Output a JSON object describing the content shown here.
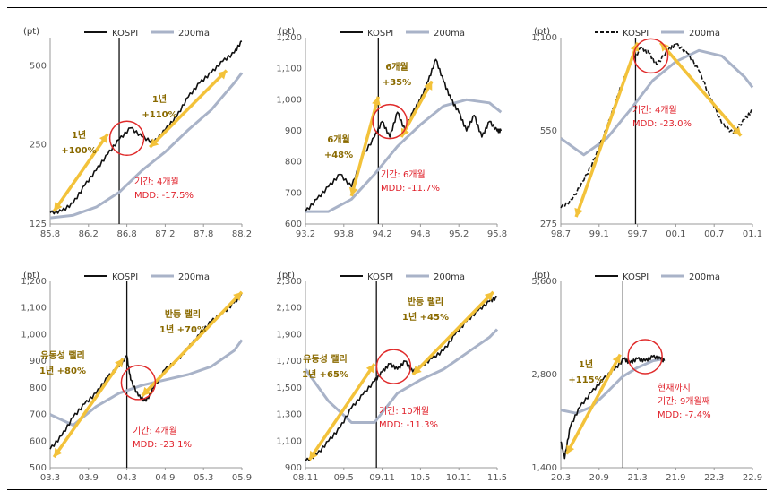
{
  "unit_label": "(pt)",
  "legend": {
    "series1": "KOSPI",
    "series2": "200ma"
  },
  "colors": {
    "index": "#111111",
    "ma": "#a9b3c8",
    "arrow": "#f3c23a",
    "circle": "#e02b2b",
    "gold_text": "#8a6a00",
    "red_text": "#e0202a"
  },
  "chart_data": [
    {
      "type": "line",
      "id": "p1",
      "x_ticks": [
        "85.8",
        "86.2",
        "86.8",
        "87.2",
        "87.8",
        "88.2"
      ],
      "y_ticks": [
        "125",
        "250",
        "500"
      ],
      "log_scale": true,
      "ylim": [
        125,
        640
      ],
      "dashed_index": false,
      "series": [
        {
          "values": [
            [
              0,
              138
            ],
            [
              0.3,
              140
            ],
            [
              0.6,
              150
            ],
            [
              0.9,
              175
            ],
            [
              1.2,
              200
            ],
            [
              1.5,
              230
            ],
            [
              1.8,
              262
            ],
            [
              2.1,
              290
            ],
            [
              2.4,
              268
            ],
            [
              2.7,
              255
            ],
            [
              3.0,
              285
            ],
            [
              3.3,
              320
            ],
            [
              3.6,
              380
            ],
            [
              3.9,
              430
            ],
            [
              4.2,
              470
            ],
            [
              4.5,
              520
            ],
            [
              4.8,
              560
            ],
            [
              5.0,
              620
            ]
          ]
        },
        {
          "values": [
            [
              0,
              132
            ],
            [
              0.6,
              135
            ],
            [
              1.2,
              145
            ],
            [
              1.8,
              165
            ],
            [
              2.4,
              200
            ],
            [
              3.0,
              235
            ],
            [
              3.6,
              285
            ],
            [
              4.2,
              340
            ],
            [
              4.8,
              430
            ],
            [
              5.0,
              470
            ]
          ]
        }
      ],
      "vline_x": 1.8,
      "arrows": [
        [
          [
            0.1,
            140
          ],
          [
            1.5,
            275
          ]
        ],
        [
          [
            2.6,
            245
          ],
          [
            4.6,
            480
          ]
        ]
      ],
      "circle": {
        "x": 2.0,
        "y": 265
      },
      "gold_labels": [
        [
          "1년",
          "+100%"
        ],
        [
          "1년",
          "+110%"
        ]
      ],
      "red_labels": [
        "기간: 4개월",
        "MDD: -17.5%"
      ]
    },
    {
      "type": "line",
      "id": "p2",
      "x_ticks": [
        "93.2",
        "93.8",
        "94.2",
        "94.8",
        "95.2",
        "95.8"
      ],
      "y_ticks": [
        "600",
        "700",
        "800",
        "900",
        "1,000",
        "1,100",
        "1,200"
      ],
      "log_scale": false,
      "ylim": [
        600,
        1200
      ],
      "dashed_index": false,
      "series": [
        {
          "values": [
            [
              0,
              640
            ],
            [
              0.3,
              680
            ],
            [
              0.6,
              720
            ],
            [
              0.9,
              760
            ],
            [
              1.2,
              720
            ],
            [
              1.5,
              820
            ],
            [
              1.8,
              880
            ],
            [
              2.0,
              930
            ],
            [
              2.2,
              880
            ],
            [
              2.4,
              960
            ],
            [
              2.6,
              900
            ],
            [
              2.8,
              960
            ],
            [
              3.0,
              1000
            ],
            [
              3.2,
              1060
            ],
            [
              3.4,
              1130
            ],
            [
              3.6,
              1060
            ],
            [
              3.8,
              1000
            ],
            [
              4.0,
              960
            ],
            [
              4.2,
              900
            ],
            [
              4.4,
              950
            ],
            [
              4.6,
              880
            ],
            [
              4.8,
              930
            ],
            [
              5.0,
              900
            ],
            [
              5.1,
              900
            ]
          ]
        },
        {
          "values": [
            [
              0,
              640
            ],
            [
              0.6,
              640
            ],
            [
              1.2,
              680
            ],
            [
              1.8,
              760
            ],
            [
              2.4,
              850
            ],
            [
              3.0,
              920
            ],
            [
              3.6,
              980
            ],
            [
              4.2,
              1000
            ],
            [
              4.8,
              990
            ],
            [
              5.1,
              960
            ]
          ]
        }
      ],
      "vline_x": 1.9,
      "arrows": [
        [
          [
            1.2,
            690
          ],
          [
            1.9,
            1010
          ]
        ],
        [
          [
            2.5,
            880
          ],
          [
            3.3,
            1060
          ]
        ]
      ],
      "circle": {
        "x": 2.2,
        "y": 930
      },
      "gold_labels": [
        [
          "6개월",
          "+48%"
        ],
        [
          "6개월",
          "+35%"
        ]
      ],
      "red_labels": [
        "기간: 6개월",
        "MDD: -11.7%"
      ]
    },
    {
      "type": "line",
      "id": "p3",
      "x_ticks": [
        "98.7",
        "99.1",
        "99.7",
        "00.1",
        "00.7",
        "01.1"
      ],
      "y_ticks": [
        "275",
        "550",
        "1,100"
      ],
      "log_scale": true,
      "ylim": [
        275,
        1100
      ],
      "dashed_index": true,
      "series": [
        {
          "values": [
            [
              0,
              310
            ],
            [
              0.3,
              330
            ],
            [
              0.6,
              380
            ],
            [
              0.9,
              450
            ],
            [
              1.2,
              560
            ],
            [
              1.5,
              720
            ],
            [
              1.8,
              900
            ],
            [
              2.1,
              1020
            ],
            [
              2.3,
              980
            ],
            [
              2.5,
              900
            ],
            [
              2.8,
              1000
            ],
            [
              3.0,
              1050
            ],
            [
              3.3,
              980
            ],
            [
              3.6,
              860
            ],
            [
              3.9,
              700
            ],
            [
              4.2,
              580
            ],
            [
              4.5,
              540
            ],
            [
              4.8,
              600
            ],
            [
              5.0,
              640
            ]
          ]
        },
        {
          "values": [
            [
              0,
              520
            ],
            [
              0.6,
              460
            ],
            [
              1.2,
              520
            ],
            [
              1.8,
              640
            ],
            [
              2.4,
              800
            ],
            [
              3.0,
              920
            ],
            [
              3.6,
              1000
            ],
            [
              4.2,
              960
            ],
            [
              4.8,
              820
            ],
            [
              5.0,
              760
            ]
          ]
        }
      ],
      "vline_x": 1.95,
      "arrows": [
        [
          [
            0.4,
            290
          ],
          [
            2.0,
            1060
          ]
        ],
        [
          [
            2.6,
            1060
          ],
          [
            4.7,
            530
          ]
        ]
      ],
      "circle": {
        "x": 2.35,
        "y": 960
      },
      "gold_labels": [],
      "red_labels": [
        "기간: 4개월",
        "MDD: -23.0%"
      ]
    },
    {
      "type": "line",
      "id": "p4",
      "x_ticks": [
        "03.3",
        "03.9",
        "04.3",
        "04.9",
        "05.3",
        "05.9"
      ],
      "y_ticks": [
        "500",
        "600",
        "700",
        "800",
        "900",
        "1,000",
        "1,100",
        "1,200"
      ],
      "log_scale": false,
      "ylim": [
        500,
        1200
      ],
      "dashed_index": false,
      "series": [
        {
          "values": [
            [
              0,
              570
            ],
            [
              0.3,
              620
            ],
            [
              0.6,
              690
            ],
            [
              0.9,
              740
            ],
            [
              1.2,
              780
            ],
            [
              1.5,
              840
            ],
            [
              1.8,
              880
            ],
            [
              2.0,
              920
            ],
            [
              2.1,
              830
            ],
            [
              2.3,
              770
            ],
            [
              2.5,
              750
            ],
            [
              2.7,
              800
            ],
            [
              3.0,
              870
            ],
            [
              3.3,
              900
            ],
            [
              3.6,
              950
            ],
            [
              3.9,
              1000
            ],
            [
              4.2,
              1050
            ],
            [
              4.5,
              1080
            ],
            [
              4.8,
              1120
            ],
            [
              5.0,
              1150
            ]
          ]
        },
        {
          "values": [
            [
              0,
              700
            ],
            [
              0.6,
              660
            ],
            [
              1.2,
              730
            ],
            [
              1.8,
              780
            ],
            [
              2.4,
              810
            ],
            [
              3.0,
              830
            ],
            [
              3.6,
              850
            ],
            [
              4.2,
              880
            ],
            [
              4.8,
              940
            ],
            [
              5.0,
              980
            ]
          ]
        }
      ],
      "vline_x": 2.0,
      "arrows": [
        [
          [
            0.1,
            540
          ],
          [
            1.9,
            910
          ]
        ],
        [
          [
            2.4,
            770
          ],
          [
            5.0,
            1160
          ]
        ]
      ],
      "circle": {
        "x": 2.3,
        "y": 820
      },
      "gold_labels": [
        [
          "유동성 랠리",
          "1년 +80%"
        ],
        [
          "반등 랠리",
          "1년 +70%"
        ]
      ],
      "red_labels": [
        "기간: 4개월",
        "MDD: -23.1%"
      ]
    },
    {
      "type": "line",
      "id": "p5",
      "x_ticks": [
        "08.11",
        "09.5",
        "09.11",
        "10.5",
        "10.11",
        "11.5"
      ],
      "y_ticks": [
        "900",
        "1,100",
        "1,300",
        "1,500",
        "1,700",
        "1,900",
        "2,100",
        "2,300"
      ],
      "log_scale": false,
      "ylim": [
        900,
        2300
      ],
      "dashed_index": false,
      "series": [
        {
          "values": [
            [
              0,
              950
            ],
            [
              0.3,
              1000
            ],
            [
              0.6,
              1100
            ],
            [
              0.9,
              1200
            ],
            [
              1.2,
              1350
            ],
            [
              1.5,
              1450
            ],
            [
              1.8,
              1550
            ],
            [
              2.0,
              1620
            ],
            [
              2.2,
              1680
            ],
            [
              2.4,
              1640
            ],
            [
              2.6,
              1700
            ],
            [
              2.8,
              1620
            ],
            [
              3.0,
              1660
            ],
            [
              3.3,
              1720
            ],
            [
              3.6,
              1780
            ],
            [
              3.9,
              1900
            ],
            [
              4.2,
              2000
            ],
            [
              4.5,
              2080
            ],
            [
              4.8,
              2150
            ],
            [
              5.0,
              2180
            ]
          ]
        },
        {
          "values": [
            [
              0,
              1640
            ],
            [
              0.6,
              1400
            ],
            [
              1.2,
              1240
            ],
            [
              1.8,
              1240
            ],
            [
              2.4,
              1460
            ],
            [
              3.0,
              1560
            ],
            [
              3.6,
              1640
            ],
            [
              4.2,
              1760
            ],
            [
              4.8,
              1880
            ],
            [
              5.0,
              1940
            ]
          ]
        }
      ],
      "vline_x": 1.85,
      "arrows": [
        [
          [
            0.1,
            960
          ],
          [
            1.8,
            1680
          ]
        ],
        [
          [
            2.8,
            1600
          ],
          [
            4.9,
            2220
          ]
        ]
      ],
      "circle": {
        "x": 2.3,
        "y": 1660
      },
      "gold_labels": [
        [
          "유동성 랠리",
          "1년 +65%"
        ],
        [
          "반등 랠리",
          "1년 +45%"
        ]
      ],
      "red_labels": [
        "기간: 10개월",
        "MDD: -11.3%"
      ]
    },
    {
      "type": "line",
      "id": "p6",
      "x_ticks": [
        "20.3",
        "20.9",
        "21.3",
        "21.9",
        "22.3",
        "22.9"
      ],
      "y_ticks": [
        "1,400",
        "2,800",
        "5,600"
      ],
      "log_scale": true,
      "ylim": [
        1400,
        5600
      ],
      "dashed_index": false,
      "series": [
        {
          "values": [
            [
              0,
              1700
            ],
            [
              0.1,
              1500
            ],
            [
              0.25,
              1900
            ],
            [
              0.5,
              2200
            ],
            [
              0.8,
              2450
            ],
            [
              1.1,
              2700
            ],
            [
              1.4,
              2900
            ],
            [
              1.65,
              3150
            ],
            [
              1.8,
              3050
            ],
            [
              2.0,
              3150
            ],
            [
              2.2,
              3100
            ],
            [
              2.4,
              3200
            ],
            [
              2.6,
              3150
            ],
            [
              2.7,
              3100
            ]
          ]
        },
        {
          "values": [
            [
              0,
              2150
            ],
            [
              0.4,
              2100
            ],
            [
              0.8,
              2200
            ],
            [
              1.2,
              2450
            ],
            [
              1.6,
              2750
            ],
            [
              2.0,
              2950
            ],
            [
              2.4,
              3100
            ],
            [
              2.7,
              3150
            ]
          ]
        }
      ],
      "vline_x": 1.62,
      "arrows": [
        [
          [
            0.15,
            1550
          ],
          [
            1.55,
            3250
          ]
        ]
      ],
      "circle": {
        "x": 2.2,
        "y": 3200
      },
      "gold_labels": [
        [
          "1년",
          "+115%"
        ]
      ],
      "red_labels": [
        "현재까지",
        "기간: 9개월째",
        "MDD: -7.4%"
      ]
    }
  ]
}
